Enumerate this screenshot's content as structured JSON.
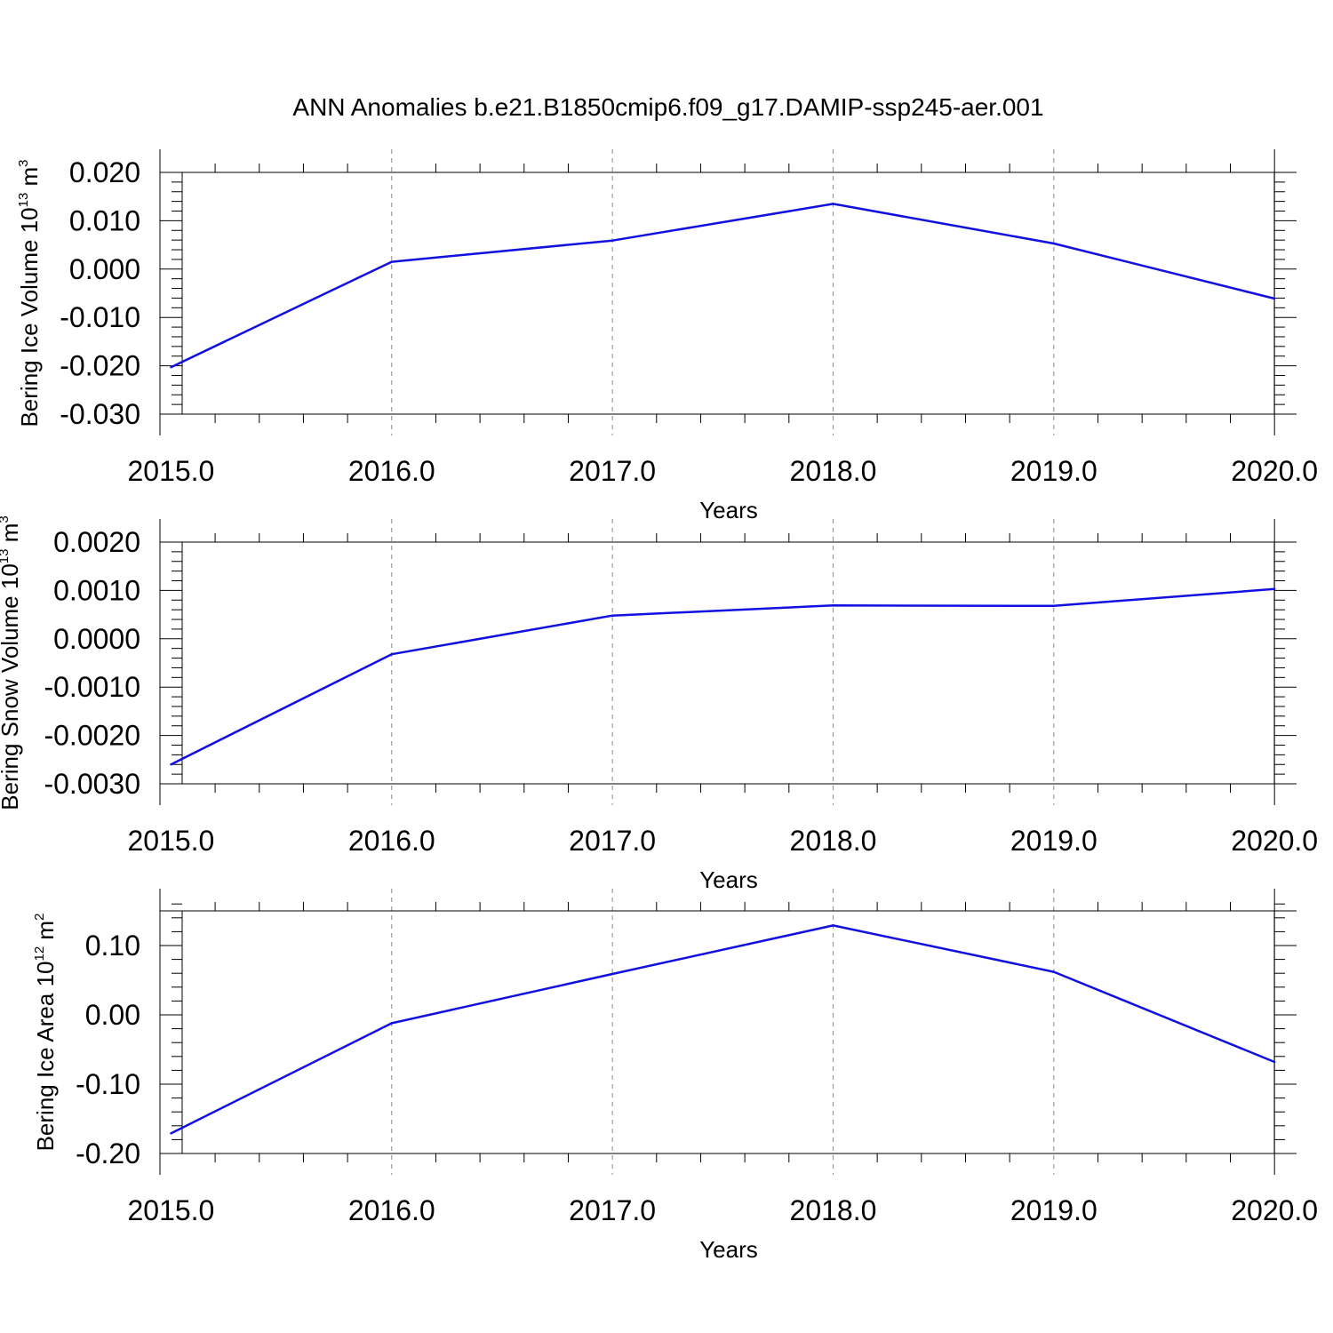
{
  "title": "ANN Anomalies b.e21.B1850cmip6.f09_g17.DAMIP-ssp245-aer.001",
  "colors": {
    "line": "#1010e0",
    "axis": "#000000",
    "grid": "#888888",
    "text": "#000000"
  },
  "chart_data": [
    {
      "type": "line",
      "xlabel": "Years",
      "ylabel_main": "Bering Ice Volume 10",
      "ylabel_exp": "13",
      "ylabel_unit": " m",
      "ylabel_unit_exp": "3",
      "x": [
        2015,
        2016,
        2017,
        2018,
        2019,
        2020
      ],
      "x_tick_labels": [
        "2015.0",
        "2016.0",
        "2017.0",
        "2018.0",
        "2019.0",
        "2020.0"
      ],
      "values": [
        -0.0203,
        0.0015,
        0.0059,
        0.0135,
        0.0053,
        -0.0061
      ],
      "xlim": [
        2014.95,
        2020.1
      ],
      "ylim": [
        -0.03,
        0.02
      ],
      "y_ticks": [
        -0.03,
        -0.02,
        -0.01,
        0.0,
        0.01,
        0.02
      ],
      "y_tick_labels": [
        "-0.030",
        "-0.020",
        "-0.010",
        "0.000",
        "0.010",
        "0.020"
      ],
      "y_minor_step": 0.002,
      "grid": "vertical dashed at major x ticks"
    },
    {
      "type": "line",
      "xlabel": "Years",
      "ylabel_main": "Bering Snow Volume 10",
      "ylabel_exp": "13",
      "ylabel_unit": " m",
      "ylabel_unit_exp": "3",
      "x": [
        2015,
        2016,
        2017,
        2018,
        2019,
        2020
      ],
      "x_tick_labels": [
        "2015.0",
        "2016.0",
        "2017.0",
        "2018.0",
        "2019.0",
        "2020.0"
      ],
      "values": [
        -0.0026,
        -0.00032,
        0.00048,
        0.00069,
        0.00068,
        0.00103
      ],
      "xlim": [
        2014.95,
        2020.1
      ],
      "ylim": [
        -0.003,
        0.002
      ],
      "y_ticks": [
        -0.003,
        -0.002,
        -0.001,
        0.0,
        0.001,
        0.002
      ],
      "y_tick_labels": [
        "-0.0030",
        "-0.0020",
        "-0.0010",
        "0.0000",
        "0.0010",
        "0.0020"
      ],
      "y_minor_step": 0.0002,
      "grid": "vertical dashed at major x ticks"
    },
    {
      "type": "line",
      "xlabel": "Years",
      "ylabel_main": "Bering Ice Area 10",
      "ylabel_exp": "12",
      "ylabel_unit": " m",
      "ylabel_unit_exp": "2",
      "x": [
        2015,
        2016,
        2017,
        2018,
        2019,
        2020
      ],
      "x_tick_labels": [
        "2015.0",
        "2016.0",
        "2017.0",
        "2018.0",
        "2019.0",
        "2020.0"
      ],
      "values": [
        -0.171,
        -0.012,
        0.059,
        0.129,
        0.062,
        -0.068
      ],
      "xlim": [
        2014.95,
        2020.1
      ],
      "ylim": [
        -0.2,
        0.15
      ],
      "y_ticks": [
        -0.2,
        -0.1,
        0.0,
        0.1
      ],
      "y_tick_labels": [
        "-0.20",
        "-0.10",
        "0.00",
        "0.10"
      ],
      "y_minor_step": 0.02,
      "grid": "vertical dashed at major x ticks"
    }
  ]
}
